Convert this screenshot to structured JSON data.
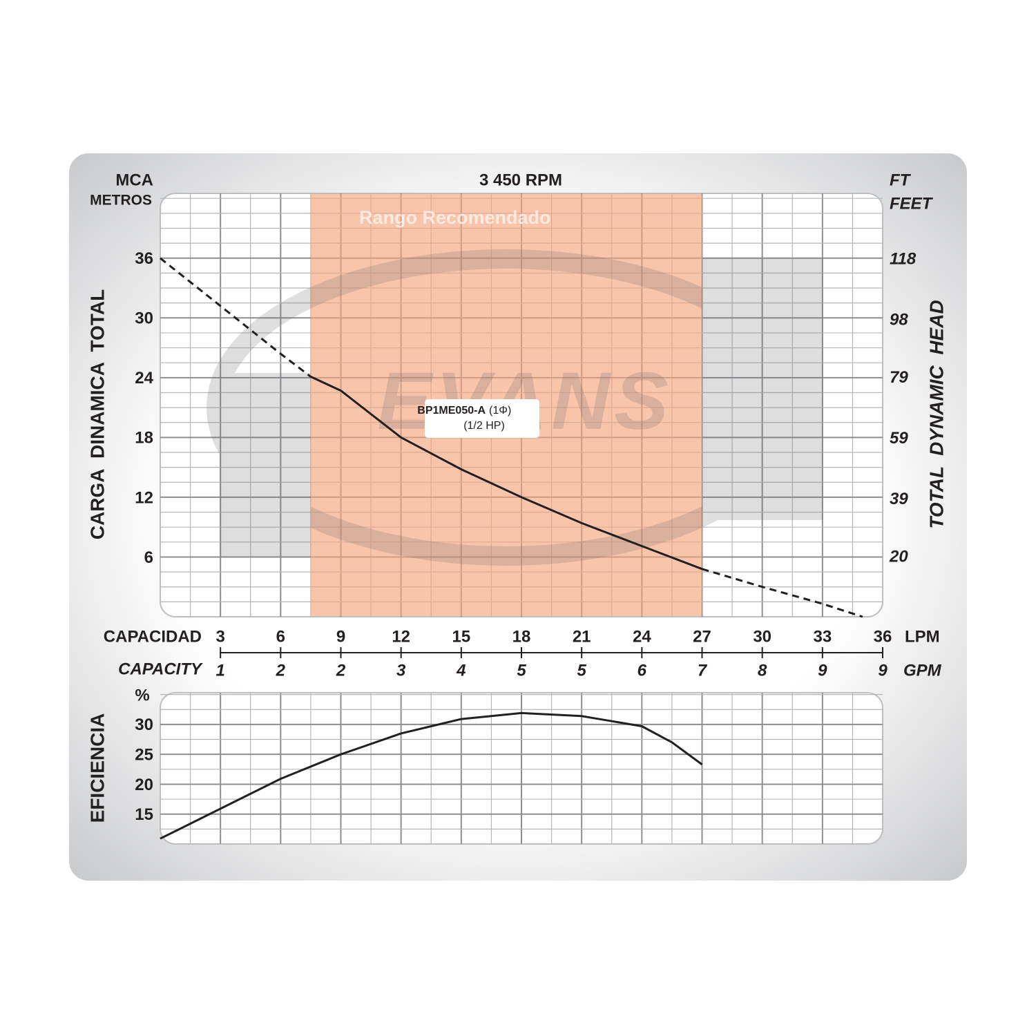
{
  "chart_data": [
    {
      "type": "line",
      "title": "3 450 RPM",
      "y_unit_top": "MCA",
      "y_unit_sub": "METROS",
      "y2_unit_top": "FT",
      "y2_unit_sub": "FEET",
      "ylabel": "CARGA  DINAMICA  TOTAL",
      "y2label": "TOTAL  DYNAMIC  HEAD",
      "xlabel": "CAPACIDAD",
      "xunit": "LPM",
      "x2label": "CAPACITY",
      "x2unit": "GPM",
      "x": [
        0,
        3,
        6,
        7.5,
        9,
        12,
        15,
        18,
        21,
        24,
        27,
        30,
        33,
        35
      ],
      "series": [
        {
          "style": "dashed",
          "color": "#231f20",
          "values": [
            36,
            31.2,
            26.4,
            24.1,
            null,
            null,
            null,
            null,
            null,
            null,
            4.8,
            3.0,
            1.3,
            0
          ]
        },
        {
          "style": "solid",
          "color": "#231f20",
          "values": [
            null,
            null,
            null,
            24.1,
            22.7,
            18.0,
            14.8,
            12.0,
            9.4,
            7.1,
            4.8,
            null,
            null,
            null
          ]
        }
      ],
      "xlim": [
        0,
        36
      ],
      "xticks": [
        3,
        6,
        9,
        12,
        15,
        18,
        21,
        24,
        27,
        30,
        33,
        36
      ],
      "x2tick_labels": [
        "1",
        "2",
        "2",
        "3",
        "4",
        "5",
        "5",
        "6",
        "7",
        "8",
        "9",
        "9"
      ],
      "ylim": [
        0,
        42.5
      ],
      "yticks": [
        6,
        12,
        18,
        24,
        30,
        36
      ],
      "y2lim": [
        0,
        139.4
      ],
      "y2ticks": [
        20,
        39,
        59,
        79,
        98,
        118
      ],
      "grid": true,
      "grid_step_x": 1.5,
      "grid_step_y": 1.5,
      "recommended_range": {
        "label": "Rango Recomendado",
        "x": [
          7.5,
          27
        ],
        "color": "#f5a47c"
      },
      "annotation": {
        "model": "BP1ME050-A",
        "phase": "(1Φ)",
        "power": "(1/2 HP)"
      },
      "watermark": "EVANS"
    },
    {
      "type": "line",
      "ylabel": "EFICIENCIA",
      "yunit": "%",
      "x": [
        0,
        3,
        6,
        9,
        12,
        15,
        18,
        21,
        24,
        25.5,
        27
      ],
      "series": [
        {
          "style": "solid",
          "color": "#231f20",
          "values": [
            10.9,
            15.9,
            20.9,
            25.0,
            28.5,
            30.9,
            31.9,
            31.4,
            29.7,
            27.0,
            23.3
          ]
        }
      ],
      "xlim": [
        0,
        36
      ],
      "ylim": [
        10,
        35.3
      ],
      "yticks": [
        15,
        20,
        25,
        30
      ],
      "grid": true,
      "grid_step_x": 1.5,
      "grid_step_y": 2.5
    }
  ]
}
